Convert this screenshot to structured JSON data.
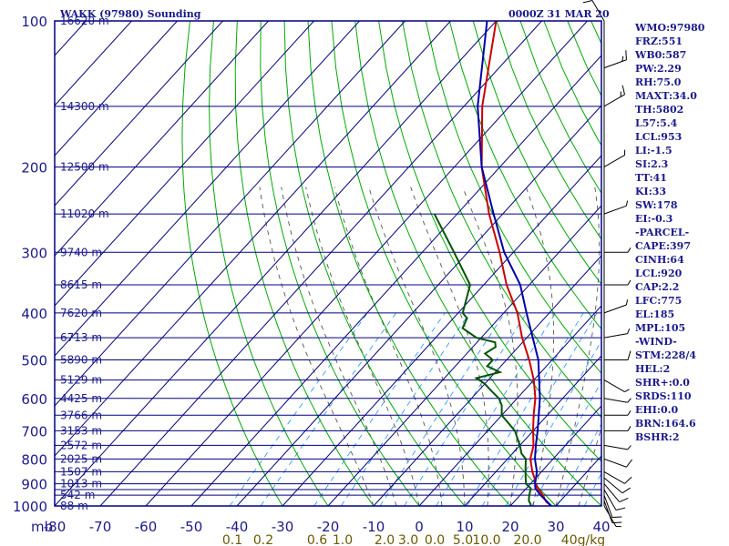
{
  "header": {
    "title": "WAKK (97980) Sounding",
    "date": "0000Z 31 MAR 20"
  },
  "colors": {
    "frame": "#000080",
    "isotherm": "#000080",
    "isobar": "#000080",
    "dry_adiabat": "#00aa00",
    "moist_adiabat": "#555555",
    "mixing_ratio": "#3399ff",
    "temperature": "#cc0000",
    "dewpoint": "#005500",
    "parcel": "#0000aa",
    "axis_label": "#1a1a8c",
    "mixing_label": "#6b5a00",
    "wind": "#000000"
  },
  "sidebar": [
    "WMO:97980",
    "FRZ:551",
    "WB0:587",
    "PW:2.29",
    "RH:75.0",
    "MAXT:34.0",
    "TH:5802",
    "L57:5.4",
    "LCL:953",
    "LI:-1.5",
    "SI:2.3",
    "TT:41",
    "KI:33",
    "SW:178",
    "EI:-0.3",
    "-PARCEL-",
    "CAPE:397",
    "CINH:64",
    "LCL:920",
    "CAP:2.2",
    "LFC:775",
    "EL:185",
    "MPL:105",
    "-WIND-",
    "STM:228/4",
    "HEL:2",
    "SHR+:0.0",
    "SRDS:110",
    "EHI:0.0",
    "BRN:164.6",
    "BSHR:2"
  ],
  "chart_data": {
    "type": "line",
    "title": "WAKK (97980) Sounding",
    "ylabel": "mb",
    "xlim": [
      -80,
      40
    ],
    "ylim": [
      1000,
      100
    ],
    "y_log": true,
    "skew": true,
    "x_ticks": [
      "-80",
      "-70",
      "-60",
      "-50",
      "-40",
      "-30",
      "-20",
      "-10",
      "0",
      "10",
      "20",
      "30",
      "40"
    ],
    "pressure_ticks": [
      "100",
      "200",
      "300",
      "400",
      "500",
      "600",
      "700",
      "800",
      "900",
      "1000"
    ],
    "pressure_levels": [
      100,
      150,
      200,
      250,
      300,
      350,
      400,
      450,
      500,
      550,
      600,
      650,
      700,
      750,
      800,
      850,
      900,
      925,
      950,
      1000
    ],
    "height_labels": [
      {
        "p": 100,
        "text": "16620 m"
      },
      {
        "p": 150,
        "text": "14300 m"
      },
      {
        "p": 200,
        "text": "12500 m"
      },
      {
        "p": 250,
        "text": "11020 m"
      },
      {
        "p": 300,
        "text": "9740 m"
      },
      {
        "p": 350,
        "text": "8615 m"
      },
      {
        "p": 400,
        "text": "7620 m"
      },
      {
        "p": 450,
        "text": "6713 m"
      },
      {
        "p": 500,
        "text": "5890 m"
      },
      {
        "p": 550,
        "text": "5129 m"
      },
      {
        "p": 600,
        "text": "4425 m"
      },
      {
        "p": 650,
        "text": "3766 m"
      },
      {
        "p": 700,
        "text": "3153 m"
      },
      {
        "p": 750,
        "text": "2572 m"
      },
      {
        "p": 800,
        "text": "2025 m"
      },
      {
        "p": 850,
        "text": "1507 m"
      },
      {
        "p": 900,
        "text": "1013 m"
      },
      {
        "p": 950,
        "text": "542 m"
      },
      {
        "p": 1000,
        "text": "88 m"
      }
    ],
    "mixing_ratio_labels": [
      "0.1",
      "0.2",
      "0.6",
      "1.0",
      "2.0",
      "3.0",
      "0.0",
      "5.0",
      "10.0",
      "20.0",
      "40g/kg"
    ],
    "series": [
      {
        "key": "temperature",
        "points": [
          [
            1000,
            29
          ],
          [
            980,
            27
          ],
          [
            950,
            25
          ],
          [
            925,
            23
          ],
          [
            900,
            21
          ],
          [
            880,
            20
          ],
          [
            850,
            18
          ],
          [
            800,
            15
          ],
          [
            750,
            13
          ],
          [
            700,
            10
          ],
          [
            650,
            7
          ],
          [
            600,
            4
          ],
          [
            550,
            0
          ],
          [
            500,
            -5
          ],
          [
            450,
            -11
          ],
          [
            400,
            -17
          ],
          [
            350,
            -25
          ],
          [
            300,
            -33
          ],
          [
            250,
            -43
          ],
          [
            200,
            -54
          ],
          [
            150,
            -66
          ],
          [
            100,
            -80
          ]
        ]
      },
      {
        "key": "dewpoint",
        "points": [
          [
            1000,
            24.5
          ],
          [
            990,
            24
          ],
          [
            975,
            23
          ],
          [
            950,
            22
          ],
          [
            920,
            21
          ],
          [
            900,
            19
          ],
          [
            880,
            18
          ],
          [
            860,
            17
          ],
          [
            840,
            16
          ],
          [
            800,
            14
          ],
          [
            780,
            12
          ],
          [
            750,
            10
          ],
          [
            700,
            6
          ],
          [
            650,
            0
          ],
          [
            620,
            -2
          ],
          [
            600,
            -4
          ],
          [
            580,
            -7
          ],
          [
            560,
            -10
          ],
          [
            545,
            -13
          ],
          [
            530,
            -9
          ],
          [
            515,
            -13
          ],
          [
            500,
            -13
          ],
          [
            485,
            -16
          ],
          [
            470,
            -15
          ],
          [
            460,
            -16
          ],
          [
            450,
            -21
          ],
          [
            430,
            -26
          ],
          [
            410,
            -27
          ],
          [
            400,
            -29
          ],
          [
            350,
            -33
          ],
          [
            300,
            -43
          ],
          [
            250,
            -55
          ]
        ]
      },
      {
        "key": "parcel",
        "points": [
          [
            1000,
            29
          ],
          [
            950,
            24.5
          ],
          [
            920,
            22
          ],
          [
            900,
            21
          ],
          [
            850,
            19
          ],
          [
            800,
            16
          ],
          [
            750,
            13.5
          ],
          [
            700,
            11
          ],
          [
            600,
            5
          ],
          [
            500,
            -3
          ],
          [
            400,
            -15
          ],
          [
            350,
            -22
          ],
          [
            300,
            -32
          ],
          [
            250,
            -42
          ],
          [
            200,
            -54
          ],
          [
            150,
            -67
          ],
          [
            100,
            -82
          ]
        ]
      }
    ],
    "wind_barbs": [
      {
        "p": 1000,
        "dir": 150,
        "spd": 5
      },
      {
        "p": 975,
        "dir": 160,
        "spd": 10
      },
      {
        "p": 950,
        "dir": 160,
        "spd": 10
      },
      {
        "p": 925,
        "dir": 150,
        "spd": 10
      },
      {
        "p": 900,
        "dir": 140,
        "spd": 10
      },
      {
        "p": 875,
        "dir": 130,
        "spd": 10
      },
      {
        "p": 850,
        "dir": 120,
        "spd": 10
      },
      {
        "p": 800,
        "dir": 110,
        "spd": 10
      },
      {
        "p": 750,
        "dir": 100,
        "spd": 5
      },
      {
        "p": 700,
        "dir": 90,
        "spd": 5
      },
      {
        "p": 650,
        "dir": 90,
        "spd": 5
      },
      {
        "p": 600,
        "dir": 100,
        "spd": 5
      },
      {
        "p": 550,
        "dir": 120,
        "spd": 5
      },
      {
        "p": 500,
        "dir": 90,
        "spd": 10
      },
      {
        "p": 450,
        "dir": 80,
        "spd": 5
      },
      {
        "p": 400,
        "dir": 70,
        "spd": 5
      },
      {
        "p": 350,
        "dir": 90,
        "spd": 5
      },
      {
        "p": 300,
        "dir": 90,
        "spd": 5
      },
      {
        "p": 250,
        "dir": 70,
        "spd": 5
      },
      {
        "p": 200,
        "dir": 60,
        "spd": 5
      },
      {
        "p": 150,
        "dir": 60,
        "spd": 15
      },
      {
        "p": 125,
        "dir": 70,
        "spd": 15
      },
      {
        "p": 100,
        "dir": 330,
        "spd": 10
      }
    ]
  }
}
